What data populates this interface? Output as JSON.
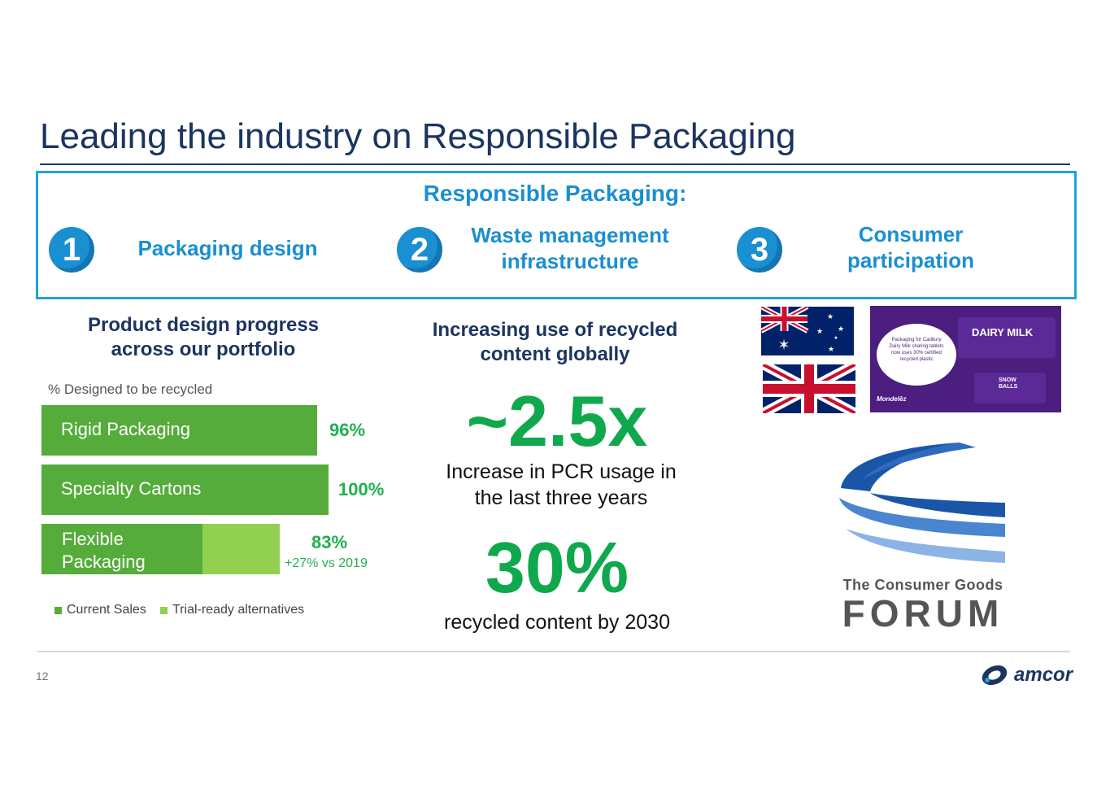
{
  "title": "Leading the industry on Responsible Packaging",
  "responsible_packaging": {
    "heading": "Responsible Packaging:",
    "pillars": [
      {
        "number": "1",
        "label": "Packaging design"
      },
      {
        "number": "2",
        "label": "Waste management infrastructure"
      },
      {
        "number": "3",
        "label": "Consumer participation"
      }
    ]
  },
  "product_design": {
    "heading": "Product design progress across our portfolio",
    "subtitle": "% Designed to be recycled",
    "legend": [
      "Current Sales",
      "Trial-ready alternatives"
    ]
  },
  "chart_data": {
    "type": "bar",
    "orientation": "horizontal",
    "stacked": true,
    "ylabel": "% Designed to be recycled",
    "categories": [
      "Rigid Packaging",
      "Specialty Cartons",
      "Flexible Packaging"
    ],
    "series": [
      {
        "name": "Current Sales",
        "values": [
          96,
          100,
          56
        ],
        "color": "#56ac3b"
      },
      {
        "name": "Trial-ready alternatives",
        "values": [
          0,
          0,
          27
        ],
        "color": "#92d050"
      }
    ],
    "data_labels": [
      "96%",
      "100%",
      "83%"
    ],
    "annotations": [
      "+27% vs 2019"
    ],
    "xlim": [
      0,
      100
    ],
    "legend_position": "bottom-left"
  },
  "recycled": {
    "heading": "Increasing use of recycled content globally",
    "stat1": "~2.5x",
    "stat1_caption": "Increase in PCR usage in the last three years",
    "stat2": "30%",
    "stat2_caption": "recycled content by 2030"
  },
  "images": {
    "flag_au": "australia-flag",
    "flag_uk": "uk-flag",
    "cadbury_pack": {
      "note": "Packaging for Cadbury Dairy Milk sharing tablets now uses 30% certified recycled plastic",
      "brand1": "DAIRY MILK",
      "brand2": "SNOW BALLS",
      "maker": "Mondelēz"
    },
    "cgf_logo": {
      "line1": "The Consumer Goods",
      "line2": "FORUM"
    }
  },
  "footer": {
    "page_number": "12",
    "brand": "amcor"
  },
  "colors": {
    "navy": "#1b3560",
    "blue": "#1a8fd1",
    "green": "#10a84c",
    "bar_dark": "#56ac3b",
    "bar_light": "#92d050"
  }
}
